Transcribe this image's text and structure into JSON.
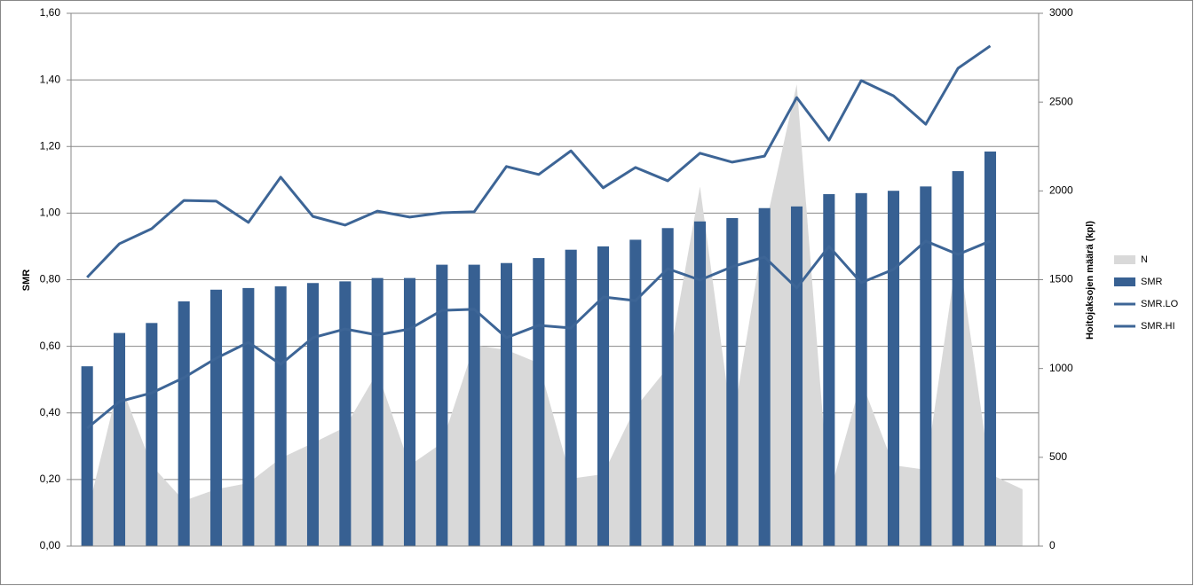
{
  "chart_data": {
    "type": "combo",
    "categories": [
      null,
      null,
      null,
      null,
      null,
      null,
      null,
      null,
      null,
      null,
      null,
      null,
      null,
      null,
      null,
      null,
      null,
      null,
      null,
      null,
      null,
      null,
      null,
      null,
      null,
      null,
      null,
      null,
      null,
      null
    ],
    "y_label": "SMR",
    "y2_label": "Hoitojaksojen määrä (kpl)",
    "ylim": [
      0,
      1.6
    ],
    "yticks": [
      {
        "value": 0,
        "label": "0,00"
      },
      {
        "value": 0.2,
        "label": "0,20"
      },
      {
        "value": 0.4,
        "label": "0,40"
      },
      {
        "value": 0.6,
        "label": "0,60"
      },
      {
        "value": 0.8,
        "label": "0,80"
      },
      {
        "value": 1.0,
        "label": "1,00"
      },
      {
        "value": 1.2,
        "label": "1,20"
      },
      {
        "value": 1.4,
        "label": "1,40"
      },
      {
        "value": 1.6,
        "label": "1,60"
      }
    ],
    "y2lim": [
      0,
      3000
    ],
    "y2ticks": [
      0,
      500,
      1000,
      1500,
      2000,
      2500,
      3000
    ],
    "grid": true,
    "legend": "right",
    "series": [
      {
        "name": "N",
        "type": "area",
        "axis": "y2",
        "color": "#d9d9d9",
        "values": [
          180,
          930,
          455,
          255,
          320,
          355,
          495,
          580,
          670,
          980,
          455,
          580,
          1130,
          1105,
          1030,
          380,
          405,
          780,
          1005,
          2025,
          680,
          1780,
          2600,
          280,
          930,
          455,
          430,
          1680,
          405,
          320
        ]
      },
      {
        "name": "SMR",
        "type": "bar",
        "color": "#376092",
        "values": [
          0.54,
          0.64,
          0.67,
          0.735,
          0.77,
          0.775,
          0.78,
          0.79,
          0.795,
          0.805,
          0.805,
          0.845,
          0.845,
          0.85,
          0.865,
          0.89,
          0.9,
          0.92,
          0.955,
          0.975,
          0.985,
          1.015,
          1.02,
          1.057,
          1.06,
          1.067,
          1.08,
          1.126,
          1.185,
          null
        ]
      },
      {
        "name": "SMR.LO",
        "type": "line",
        "color": "#3d6596",
        "values": [
          0.354,
          0.434,
          0.46,
          0.506,
          0.564,
          0.612,
          0.546,
          0.626,
          0.652,
          0.634,
          0.652,
          0.708,
          0.711,
          0.626,
          0.663,
          0.655,
          0.748,
          0.737,
          0.833,
          0.799,
          0.839,
          0.868,
          0.775,
          0.9,
          0.791,
          0.831,
          0.916,
          0.876,
          0.916,
          null
        ]
      },
      {
        "name": "SMR.HI",
        "type": "line",
        "color": "#3d6596",
        "values": [
          0.807,
          0.908,
          0.953,
          1.038,
          1.036,
          0.972,
          1.108,
          0.99,
          0.964,
          1.006,
          0.988,
          1.001,
          1.004,
          1.14,
          1.116,
          1.187,
          1.076,
          1.137,
          1.097,
          1.18,
          1.153,
          1.171,
          1.347,
          1.219,
          1.398,
          1.352,
          1.267,
          1.435,
          1.502,
          null
        ]
      }
    ]
  }
}
